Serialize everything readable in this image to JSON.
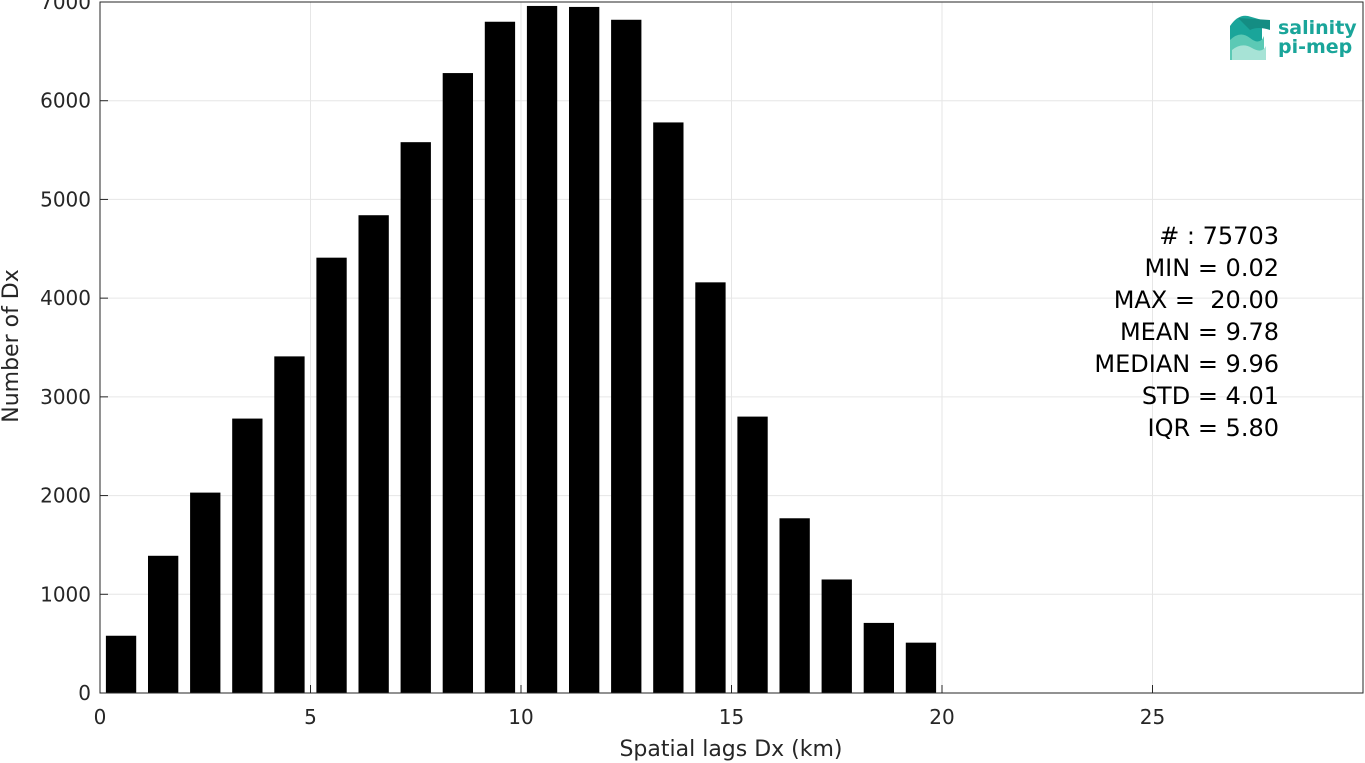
{
  "chart_data": {
    "type": "bar",
    "xlabel": "Spatial lags Dx (km)",
    "ylabel": "Number of Dx",
    "xlim": [
      0,
      30
    ],
    "ylim": [
      0,
      7000
    ],
    "xticks": [
      0,
      5,
      10,
      15,
      20,
      25
    ],
    "yticks": [
      0,
      1000,
      2000,
      3000,
      4000,
      5000,
      6000,
      7000
    ],
    "grid": true,
    "bar_color": "#000000",
    "x": [
      0.5,
      1.5,
      2.5,
      3.5,
      4.5,
      5.5,
      6.5,
      7.5,
      8.5,
      9.5,
      10.5,
      11.5,
      12.5,
      13.5,
      14.5,
      15.5,
      16.5,
      17.5,
      18.5,
      19.5
    ],
    "values": [
      580,
      1390,
      2030,
      2780,
      3410,
      4410,
      4840,
      5580,
      6280,
      6800,
      6960,
      6950,
      6820,
      5780,
      4160,
      2800,
      1770,
      1150,
      710,
      510
    ],
    "annotations": [
      "# : 75703",
      "MIN = 0.02",
      "MAX =  20.00",
      "MEAN = 9.78",
      "MEDIAN = 9.96",
      "STD = 4.01",
      "IQR = 5.80"
    ]
  },
  "logo": {
    "line1": "salinity",
    "line2": "pi-mep",
    "color": "#1aa59a"
  }
}
